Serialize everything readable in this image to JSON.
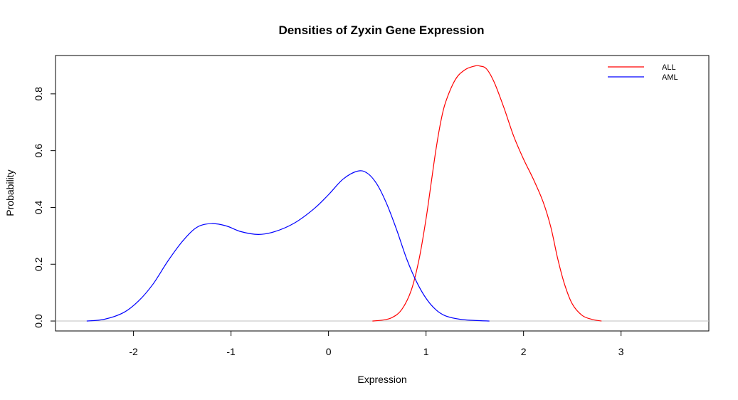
{
  "chart_data": {
    "type": "line",
    "title": "Densities of Zyxin Gene Expression",
    "xlabel": "Expression",
    "ylabel": "Probability",
    "xlim": [
      -2.8,
      3.9
    ],
    "ylim": [
      -0.035,
      0.935
    ],
    "x_ticks": [
      -2,
      -1,
      0,
      1,
      2,
      3
    ],
    "y_ticks": [
      0.0,
      0.2,
      0.4,
      0.6,
      0.8
    ],
    "y_tick_labels": [
      "0.0",
      "0.2",
      "0.4",
      "0.6",
      "0.8"
    ],
    "baseline": 0,
    "baseline_color": "#bfbfbf",
    "legend_position": "top-right",
    "series": [
      {
        "name": "ALL",
        "color": "#ff0000",
        "points": [
          [
            0.45,
            0.0
          ],
          [
            0.55,
            0.003
          ],
          [
            0.65,
            0.012
          ],
          [
            0.75,
            0.04
          ],
          [
            0.85,
            0.11
          ],
          [
            0.93,
            0.22
          ],
          [
            1.0,
            0.36
          ],
          [
            1.05,
            0.48
          ],
          [
            1.1,
            0.6
          ],
          [
            1.15,
            0.7
          ],
          [
            1.2,
            0.77
          ],
          [
            1.3,
            0.85
          ],
          [
            1.4,
            0.885
          ],
          [
            1.5,
            0.898
          ],
          [
            1.55,
            0.898
          ],
          [
            1.62,
            0.888
          ],
          [
            1.7,
            0.84
          ],
          [
            1.8,
            0.75
          ],
          [
            1.9,
            0.65
          ],
          [
            2.0,
            0.57
          ],
          [
            2.1,
            0.5
          ],
          [
            2.2,
            0.42
          ],
          [
            2.28,
            0.33
          ],
          [
            2.35,
            0.22
          ],
          [
            2.42,
            0.13
          ],
          [
            2.5,
            0.06
          ],
          [
            2.6,
            0.02
          ],
          [
            2.7,
            0.006
          ],
          [
            2.8,
            0.0
          ]
        ]
      },
      {
        "name": "AML",
        "color": "#0000ff",
        "points": [
          [
            -2.48,
            0.0
          ],
          [
            -2.3,
            0.006
          ],
          [
            -2.1,
            0.03
          ],
          [
            -1.95,
            0.07
          ],
          [
            -1.8,
            0.13
          ],
          [
            -1.65,
            0.21
          ],
          [
            -1.5,
            0.28
          ],
          [
            -1.35,
            0.33
          ],
          [
            -1.2,
            0.343
          ],
          [
            -1.05,
            0.335
          ],
          [
            -0.9,
            0.315
          ],
          [
            -0.72,
            0.305
          ],
          [
            -0.55,
            0.315
          ],
          [
            -0.35,
            0.345
          ],
          [
            -0.15,
            0.395
          ],
          [
            0.0,
            0.445
          ],
          [
            0.15,
            0.5
          ],
          [
            0.3,
            0.528
          ],
          [
            0.4,
            0.52
          ],
          [
            0.5,
            0.48
          ],
          [
            0.6,
            0.41
          ],
          [
            0.7,
            0.32
          ],
          [
            0.8,
            0.22
          ],
          [
            0.9,
            0.14
          ],
          [
            1.0,
            0.08
          ],
          [
            1.1,
            0.04
          ],
          [
            1.2,
            0.018
          ],
          [
            1.35,
            0.006
          ],
          [
            1.5,
            0.002
          ],
          [
            1.65,
            0.0
          ]
        ]
      }
    ]
  }
}
